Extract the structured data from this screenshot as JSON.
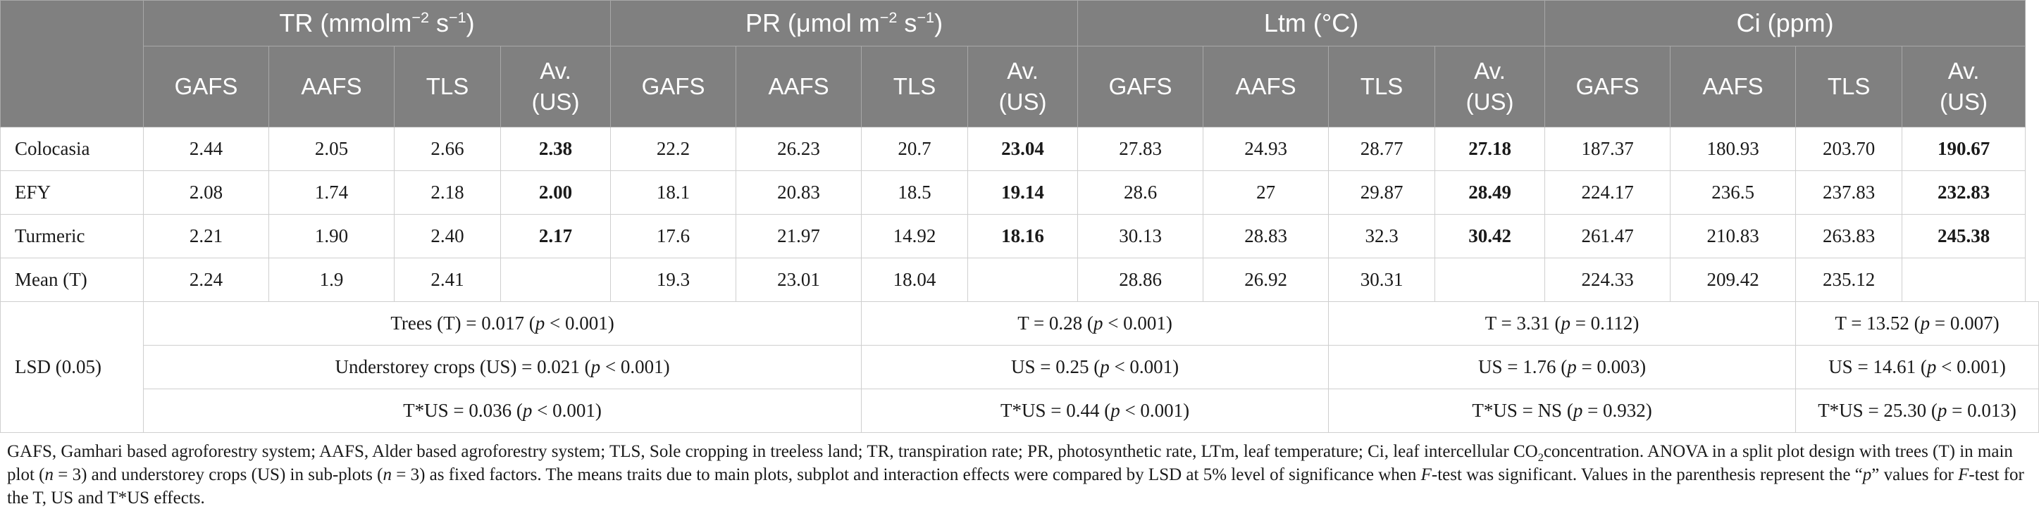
{
  "groups": [
    {
      "pre": "TR (mmolm",
      "sup1": "−2",
      "mid": " s",
      "sup2": "−1",
      "post": ")"
    },
    {
      "pre": "PR (μmol m",
      "sup1": "−2",
      "mid": " s",
      "sup2": "−1",
      "post": ")"
    },
    {
      "pre": "Ltm (°C)",
      "sup1": "",
      "mid": "",
      "sup2": "",
      "post": ""
    },
    {
      "pre": "Ci (ppm)",
      "sup1": "",
      "mid": "",
      "sup2": "",
      "post": ""
    }
  ],
  "subheaders": [
    "GAFS",
    "AAFS",
    "TLS"
  ],
  "avg_header": {
    "line1": "Av.",
    "line2": "(US)"
  },
  "rows": [
    {
      "label": "Colocasia",
      "cells": [
        "2.44",
        "2.05",
        "2.66",
        "2.38",
        "22.2",
        "26.23",
        "20.7",
        "23.04",
        "27.83",
        "24.93",
        "28.77",
        "27.18",
        "187.37",
        "180.93",
        "203.70",
        "190.67"
      ]
    },
    {
      "label": "EFY",
      "cells": [
        "2.08",
        "1.74",
        "2.18",
        "2.00",
        "18.1",
        "20.83",
        "18.5",
        "19.14",
        "28.6",
        "27",
        "29.87",
        "28.49",
        "224.17",
        "236.5",
        "237.83",
        "232.83"
      ]
    },
    {
      "label": "Turmeric",
      "cells": [
        "2.21",
        "1.90",
        "2.40",
        "2.17",
        "17.6",
        "21.97",
        "14.92",
        "18.16",
        "30.13",
        "28.83",
        "32.3",
        "30.42",
        "261.47",
        "210.83",
        "263.83",
        "245.38"
      ]
    },
    {
      "label": "Mean (T)",
      "cells": [
        "2.24",
        "1.9",
        "2.41",
        "",
        "19.3",
        "23.01",
        "18.04",
        "",
        "28.86",
        "26.92",
        "30.31",
        "",
        "224.33",
        "209.42",
        "235.12",
        ""
      ]
    }
  ],
  "lsd": {
    "label": "LSD (0.05)",
    "rows": [
      [
        {
          "pre": "Trees (T) = 0.017 (",
          "p": "p",
          "post": " < 0.001)"
        },
        {
          "pre": "T = 0.28 (",
          "p": "p",
          "post": " < 0.001)"
        },
        {
          "pre": "T = 3.31 (",
          "p": "p",
          "post": " = 0.112)"
        },
        {
          "pre": "T = 13.52 (",
          "p": "p",
          "post": " = 0.007)"
        }
      ],
      [
        {
          "pre": "Understorey crops (US) = 0.021 (",
          "p": "p",
          "post": " < 0.001)"
        },
        {
          "pre": "US = 0.25 (",
          "p": "p",
          "post": " < 0.001)"
        },
        {
          "pre": "US = 1.76 (",
          "p": "p",
          "post": " = 0.003)"
        },
        {
          "pre": "US = 14.61 (",
          "p": "p",
          "post": " < 0.001)"
        }
      ],
      [
        {
          "pre": "T*US = 0.036 (",
          "p": "p",
          "post": " < 0.001)"
        },
        {
          "pre": "T*US = 0.44 (",
          "p": "p",
          "post": " < 0.001)"
        },
        {
          "pre": "T*US = NS (",
          "p": "p",
          "post": " = 0.932)"
        },
        {
          "pre": "T*US = 25.30 (",
          "p": "p",
          "post": " = 0.013)"
        }
      ]
    ]
  },
  "footnote": {
    "s1": "GAFS, Gamhari based agroforestry system; AAFS, Alder based agroforestry system; TLS, Sole cropping in treeless land; TR, transpiration rate; PR, photosynthetic rate, LTm, leaf temperature; Ci, leaf intercellular CO",
    "sub": "2",
    "s2": "concentration. ANOVA in a split plot design with trees (T) in main plot (",
    "n1": "n",
    "s3": " = 3) and understorey crops (US) in sub-plots (",
    "n2": "n",
    "s4": " = 3) as fixed factors. The means traits due to main plots, subplot and interaction effects were compared by LSD at 5% level of significance when ",
    "f1": "F",
    "s5": "-test was significant. Values in the parenthesis represent the “",
    "p1": "p",
    "s6": "” values for ",
    "f2": "F",
    "s7": "-test for the T, US and T*US effects."
  }
}
